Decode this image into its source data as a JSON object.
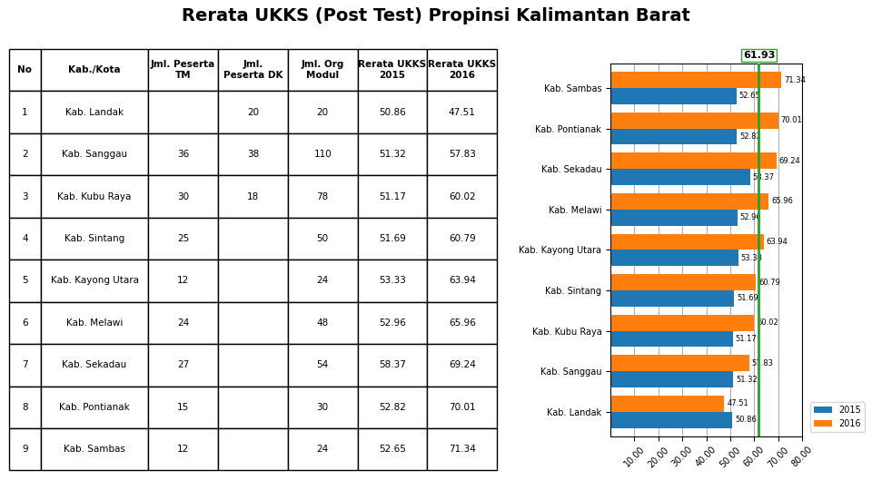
{
  "chart_data": [
    {
      "type": "table",
      "columns": [
        "No",
        "Kab./Kota",
        "Jml. Peserta\nTM",
        "Jml.\nPeserta DK",
        "Jml. Org\nModul",
        "Rerata UKKS\n2015",
        "Rerata UKKS\n2016"
      ],
      "rows": [
        [
          "1",
          "Kab. Landak",
          null,
          "20",
          "20",
          "50.86",
          "47.51"
        ],
        [
          "2",
          "Kab. Sanggau",
          "36",
          "38",
          "110",
          "51.32",
          "57.83"
        ],
        [
          "3",
          "Kab. Kubu Raya",
          "30",
          "18",
          "78",
          "51.17",
          "60.02"
        ],
        [
          "4",
          "Kab. Sintang",
          "25",
          null,
          "50",
          "51.69",
          "60.79"
        ],
        [
          "5",
          "Kab. Kayong Utara",
          "12",
          null,
          "24",
          "53.33",
          "63.94"
        ],
        [
          "6",
          "Kab. Melawi",
          "24",
          null,
          "48",
          "52.96",
          "65.96"
        ],
        [
          "7",
          "Kab. Sekadau",
          "27",
          null,
          "54",
          "58.37",
          "69.24"
        ],
        [
          "8",
          "Kab. Pontianak",
          "15",
          null,
          "30",
          "52.82",
          "70.01"
        ],
        [
          "9",
          "Kab. Sambas",
          "12",
          null,
          "24",
          "52.65",
          "71.34"
        ]
      ]
    },
    {
      "type": "bar",
      "title": "Rerata UKKS (Post Test) Propinsi Kalimantan Barat",
      "orientation": "horizontal",
      "categories": [
        "Kab. Landak",
        "Kab. Sanggau",
        "Kab. Kubu Raya",
        "Kab. Sintang",
        "Kab. Kayong Utara",
        "Kab. Melawi",
        "Kab. Sekadau",
        "Kab. Pontianak",
        "Kab. Sambas"
      ],
      "series": [
        {
          "name": "2015",
          "values": [
            50.86,
            51.32,
            51.17,
            51.69,
            53.33,
            52.96,
            58.37,
            52.82,
            52.65
          ]
        },
        {
          "name": "2016",
          "values": [
            47.51,
            57.83,
            60.02,
            60.79,
            63.94,
            65.96,
            69.24,
            70.01,
            71.34
          ]
        }
      ],
      "mean": 61.93,
      "xlim": [
        0,
        80
      ],
      "xticks": [
        {
          "value": 10,
          "label": "10.00"
        },
        {
          "value": 20,
          "label": "20.00"
        },
        {
          "value": 30,
          "label": "30.00"
        },
        {
          "value": 40,
          "label": "40.00"
        },
        {
          "value": 50,
          "label": "50.00"
        },
        {
          "value": 60,
          "label": "60.00"
        },
        {
          "value": 70,
          "label": "70.00"
        },
        {
          "value": 80,
          "label": "80.00"
        }
      ],
      "grid": true,
      "legend": "lower left",
      "data_labels": true
    }
  ]
}
